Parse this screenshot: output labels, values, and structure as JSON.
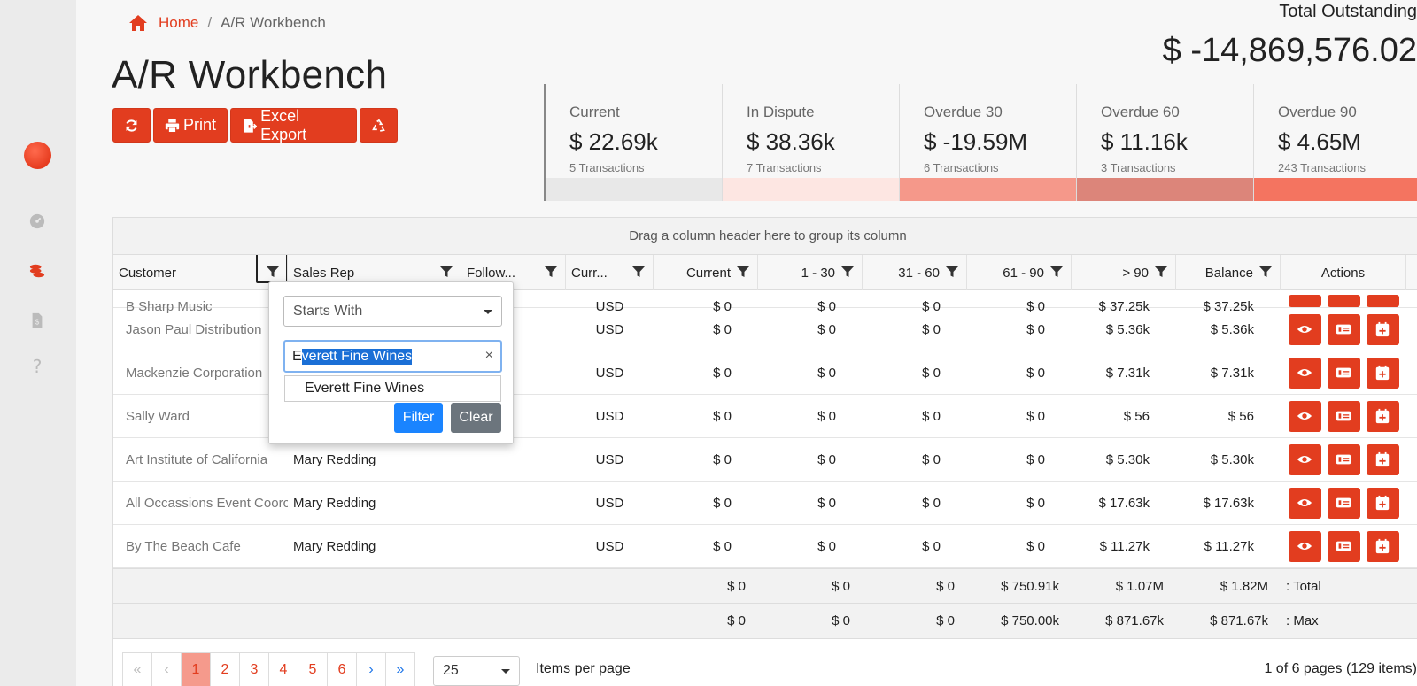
{
  "breadcrumb": {
    "home": "Home",
    "separator": "/",
    "current": "A/R Workbench"
  },
  "page_title": "A/R Workbench",
  "toolbar": {
    "print_label": "Print",
    "excel_label": "Excel Export"
  },
  "total": {
    "label": "Total Outstanding",
    "value": "$ -14,869,576.02"
  },
  "cards": [
    {
      "name": "Current",
      "amount": "$ 22.69k",
      "count": "5 Transactions",
      "color": "#e8e8e8"
    },
    {
      "name": "In Dispute",
      "amount": "$ 38.36k",
      "count": "7 Transactions",
      "color": "#fde6e2"
    },
    {
      "name": "Overdue 30",
      "amount": "$ -19.59M",
      "count": "6 Transactions",
      "color": "#f5988a"
    },
    {
      "name": "Overdue 60",
      "amount": "$ 11.16k",
      "count": "3 Transactions",
      "color": "#dc857a"
    },
    {
      "name": "Overdue 90",
      "amount": "$ 4.65M",
      "count": "243 Transactions",
      "color": "#f47460"
    }
  ],
  "grid": {
    "group_hint": "Drag a column header here to group its column",
    "columns": [
      "Customer",
      "Sales Rep",
      "Follow...",
      "Curr...",
      "Current",
      "1 - 30",
      "31 - 60",
      "61 - 90",
      "> 90",
      "Balance",
      "Actions"
    ],
    "partial_row": {
      "customer": "B Sharp Music",
      "currency": "USD",
      "current": "$ 0",
      "d30": "$ 0",
      "d60": "$ 0",
      "d90": "$ 0",
      "over90": "$ 37.25k",
      "balance": "$ 37.25k"
    },
    "rows": [
      {
        "customer": "Jason Paul Distribution",
        "rep": "",
        "currency": "USD",
        "current": "$ 0",
        "d30": "$ 0",
        "d60": "$ 0",
        "d90": "$ 0",
        "over90": "$ 5.36k",
        "balance": "$ 5.36k"
      },
      {
        "customer": "Mackenzie Corporation",
        "rep": "",
        "currency": "USD",
        "current": "$ 0",
        "d30": "$ 0",
        "d60": "$ 0",
        "d90": "$ 0",
        "over90": "$ 7.31k",
        "balance": "$ 7.31k"
      },
      {
        "customer": "Sally Ward",
        "rep": "",
        "currency": "USD",
        "current": "$ 0",
        "d30": "$ 0",
        "d60": "$ 0",
        "d90": "$ 0",
        "over90": "$ 56",
        "balance": "$ 56"
      },
      {
        "customer": "Art Institute of California",
        "rep": "Mary Redding",
        "currency": "USD",
        "current": "$ 0",
        "d30": "$ 0",
        "d60": "$ 0",
        "d90": "$ 0",
        "over90": "$ 5.30k",
        "balance": "$ 5.30k"
      },
      {
        "customer": "All Occassions Event Coorc",
        "rep": "Mary Redding",
        "currency": "USD",
        "current": "$ 0",
        "d30": "$ 0",
        "d60": "$ 0",
        "d90": "$ 0",
        "over90": "$ 17.63k",
        "balance": "$ 17.63k"
      },
      {
        "customer": "By The Beach Cafe",
        "rep": "Mary Redding",
        "currency": "USD",
        "current": "$ 0",
        "d30": "$ 0",
        "d60": "$ 0",
        "d90": "$ 0",
        "over90": "$ 11.27k",
        "balance": "$ 11.27k"
      }
    ],
    "totals": {
      "current": "$ 0",
      "d30": "$ 0",
      "d60": "$ 0",
      "d90": "$ 750.91k",
      "over90": "$ 1.07M",
      "balance": "$ 1.82M",
      "label": ": Total"
    },
    "max": {
      "current": "$ 0",
      "d30": "$ 0",
      "d60": "$ 0",
      "d90": "$ 750.00k",
      "over90": "$ 871.67k",
      "balance": "$ 871.67k",
      "label": ": Max"
    }
  },
  "pager": {
    "first": "«",
    "prev": "‹",
    "pages": [
      "1",
      "2",
      "3",
      "4",
      "5",
      "6"
    ],
    "next": "›",
    "last": "»",
    "page_size": "25",
    "items_per_page": "Items per page",
    "info": "1 of 6 pages (129 items)"
  },
  "filter_popup": {
    "operator": "Starts With",
    "value_first_char": "E",
    "value_selected": "verett Fine Wines",
    "clear_glyph": "×",
    "suggestion": "Everett Fine Wines",
    "filter_label": "Filter",
    "clear_label": "Clear"
  },
  "colors": {
    "accent": "#e23d1f",
    "filter_blue": "#1a84ff",
    "clear_gray": "#6c757d"
  }
}
